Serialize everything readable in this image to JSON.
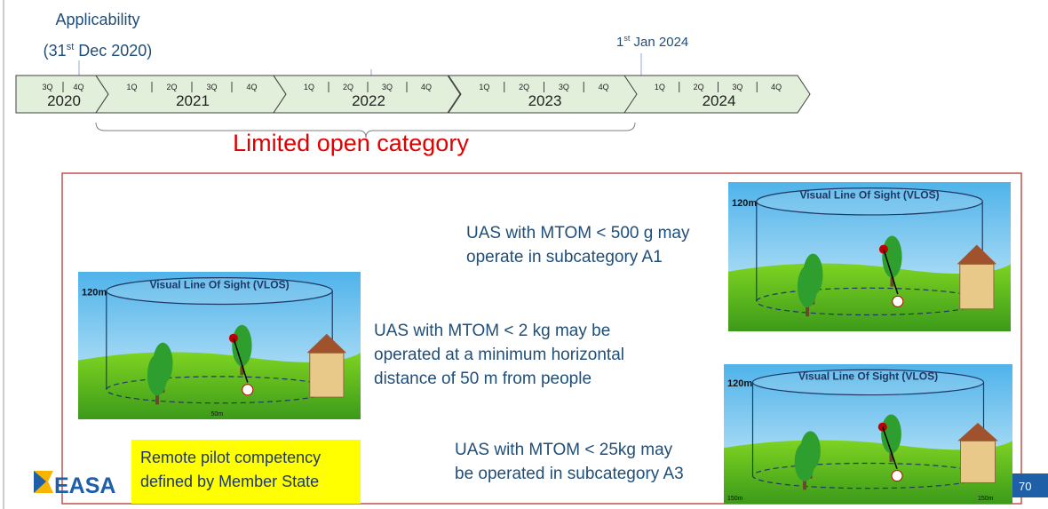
{
  "timeline": {
    "start": {
      "label": "Applicability",
      "date": {
        "pre": "(31",
        "sup": "st",
        "post": " Dec 2020)"
      }
    },
    "end": {
      "pre": "1",
      "sup": "st",
      "post": " Jan 2024"
    },
    "years": [
      {
        "label": "2020",
        "quarters": [
          "3Q",
          "4Q"
        ]
      },
      {
        "label": "2021",
        "quarters": [
          "1Q",
          "2Q",
          "3Q",
          "4Q"
        ]
      },
      {
        "label": "2022",
        "quarters": [
          "1Q",
          "2Q",
          "3Q",
          "4Q"
        ]
      },
      {
        "label": "2023",
        "quarters": [
          "1Q",
          "2Q",
          "3Q",
          "4Q"
        ]
      },
      {
        "label": "2024",
        "quarters": [
          "1Q",
          "2Q",
          "3Q",
          "4Q"
        ]
      }
    ],
    "bracket_label": "Limited open category"
  },
  "subcategories": [
    {
      "lines": [
        "UAS with MTOM < 500 g may",
        "operate in subcategory A1"
      ]
    },
    {
      "lines": [
        "UAS with MTOM < 2 kg may be",
        "operated at a minimum horizontal",
        "distance of 50 m from people"
      ]
    },
    {
      "lines": [
        "UAS with MTOM < 25kg may",
        "be operated in subcategory A3"
      ]
    }
  ],
  "illustrations": [
    {
      "title": "Visual Line Of Sight (VLOS)",
      "height_label": "120m"
    },
    {
      "title": "Visual Line Of Sight (VLOS)",
      "height_label": "120m",
      "distance_labels": [
        "50m"
      ]
    },
    {
      "title": "Visual Line Of Sight (VLOS)",
      "height_label": "120m",
      "distance_labels": [
        "150m",
        "150m"
      ]
    }
  ],
  "note": {
    "lines": [
      "Remote pilot competency",
      "defined by Member State"
    ]
  },
  "logo": "EASA",
  "page_number": "70"
}
